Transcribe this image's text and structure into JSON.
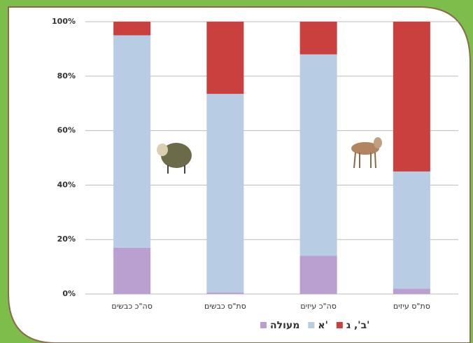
{
  "chart_data": {
    "type": "stacked_bar",
    "categories": [
      "סה\"כ כבשים",
      "סת\"ס כבשים",
      "סה\"כ עיזים",
      "סת\"ס עיזים"
    ],
    "series": [
      {
        "name": "מעולה",
        "color": "#b9a0d0",
        "values": [
          17,
          0.5,
          14,
          2
        ]
      },
      {
        "name": "א'",
        "color": "#b8cce4",
        "values": [
          78,
          73,
          74,
          43
        ]
      },
      {
        "name": "ב', ג'",
        "color": "#c9403f",
        "values": [
          5,
          26.5,
          12,
          55
        ]
      }
    ],
    "ylim": [
      0,
      100
    ],
    "yticks": [
      {
        "value": 0,
        "label": "0%"
      },
      {
        "value": 20,
        "label": "20%"
      },
      {
        "value": 40,
        "label": "40%"
      },
      {
        "value": 60,
        "label": "60%"
      },
      {
        "value": 80,
        "label": "80%"
      },
      {
        "value": 100,
        "label": "100%"
      }
    ],
    "grid": true
  }
}
